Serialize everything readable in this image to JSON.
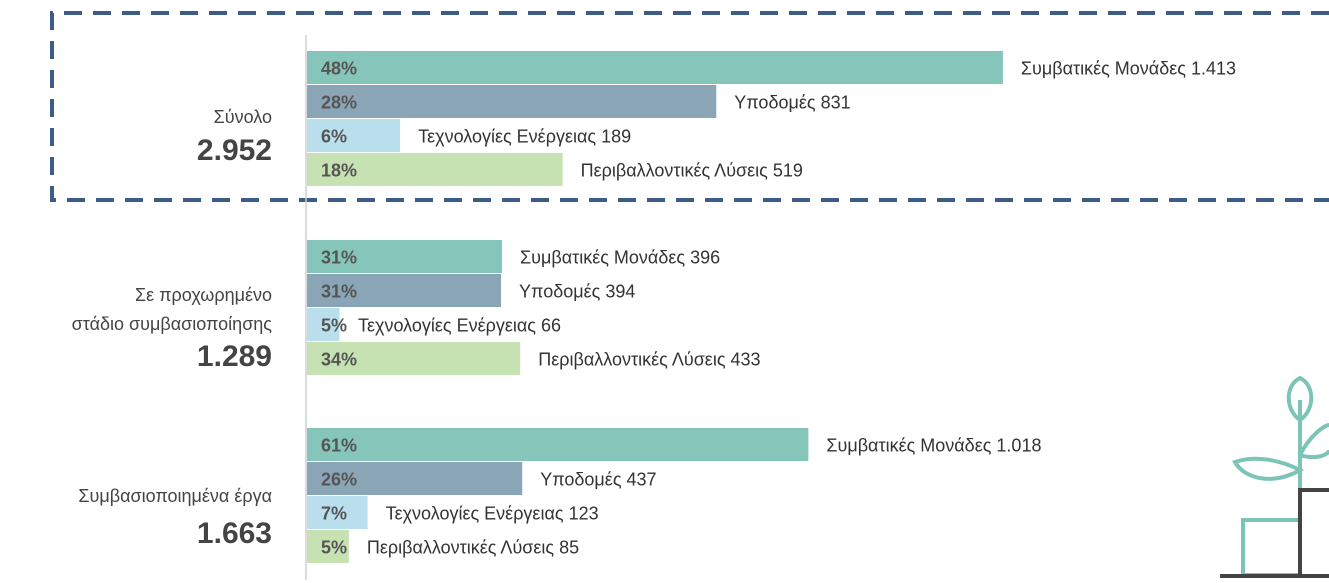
{
  "chart_data": {
    "type": "bar",
    "orientation": "horizontal",
    "xlim": [
      0,
      2000
    ],
    "categories": [
      "Συμβατικές Μονάδες",
      "Υποδομές",
      "Τεχνολογίες Ενέργειας",
      "Περιβαλλοντικές Λύσεις"
    ],
    "colors": [
      "#86c5b9",
      "#8aa5b5",
      "#b9dfec",
      "#c7e2b2"
    ],
    "groups": [
      {
        "label": [
          "Σύνολο"
        ],
        "total": "2.952",
        "values": [
          1413,
          831,
          189,
          519
        ],
        "value_labels": [
          "1.413",
          "831",
          "189",
          "519"
        ],
        "shares": [
          "48%",
          "28%",
          "6%",
          "18%"
        ]
      },
      {
        "label": [
          "Σε προχωρημένο",
          "στάδιο συμβασιοποίησης"
        ],
        "total": "1.289",
        "values": [
          396,
          394,
          66,
          433
        ],
        "value_labels": [
          "396",
          "394",
          "66",
          "433"
        ],
        "shares": [
          "31%",
          "31%",
          "5%",
          "34%"
        ]
      },
      {
        "label": [
          "Συμβασιοποιημένα έργα"
        ],
        "total": "1.663",
        "values": [
          1018,
          437,
          123,
          85
        ],
        "value_labels": [
          "1.018",
          "437",
          "123",
          "85"
        ],
        "shares": [
          "61%",
          "26%",
          "7%",
          "5%"
        ]
      }
    ]
  }
}
